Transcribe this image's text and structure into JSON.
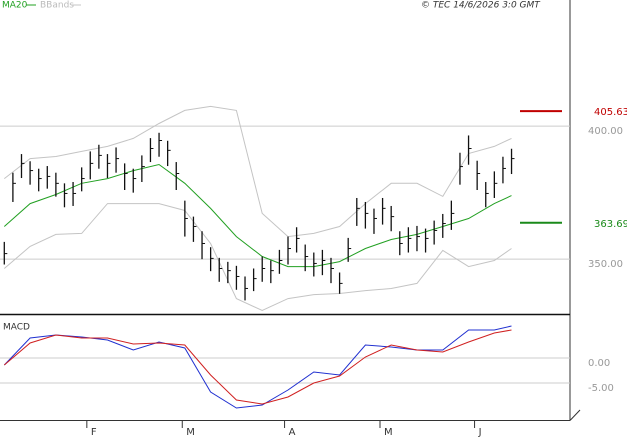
{
  "chart_data": [
    {
      "type": "ohlc",
      "source": "© TEC 14/6/2026 3:0 GMT",
      "xlim": [
        -0.5,
        65.8
      ],
      "ylim": [
        329.4,
        447.4
      ],
      "yticks": [
        {
          "value": 400,
          "label": "400.00"
        },
        {
          "value": 350,
          "label": "350.00"
        }
      ],
      "xticks": [
        {
          "value": 9.6,
          "label": "F"
        },
        {
          "value": 20.7,
          "label": "M"
        },
        {
          "value": 32.6,
          "label": "A"
        },
        {
          "value": 43.7,
          "label": "M"
        },
        {
          "value": 54.7,
          "label": "J"
        }
      ],
      "grid": true,
      "bar_color": "#111111",
      "high": [
        356.5,
        382.5,
        389.5,
        386.8,
        384.0,
        385.0,
        382.5,
        378.5,
        379.0,
        384.5,
        390.5,
        393.0,
        389.5,
        392.0,
        386.0,
        384.0,
        389.0,
        395.5,
        397.5,
        394.5,
        386.5,
        372.0,
        366.0,
        360.5,
        354.5,
        350.5,
        349.0,
        347.5,
        343.5,
        346.5,
        351.0,
        349.5,
        353.5,
        358.5,
        362.0,
        355.5,
        352.5,
        353.5,
        350.5,
        345.0,
        358.0,
        373.0,
        371.5,
        369.0,
        373.0,
        370.0,
        360.5,
        362.0,
        362.5,
        361.5,
        364.5,
        367.0,
        372.0,
        390.0,
        396.5,
        387.0,
        379.0,
        383.0,
        388.5,
        391.5
      ],
      "low": [
        348.0,
        371.5,
        380.5,
        378.0,
        375.5,
        376.5,
        373.5,
        369.5,
        370.0,
        375.5,
        380.0,
        384.0,
        380.5,
        382.5,
        376.0,
        375.0,
        379.0,
        386.5,
        388.5,
        385.0,
        376.0,
        358.5,
        356.5,
        350.0,
        345.5,
        341.5,
        341.0,
        338.5,
        334.5,
        338.0,
        341.5,
        341.0,
        344.5,
        348.0,
        352.5,
        345.5,
        343.5,
        344.0,
        341.0,
        337.0,
        349.0,
        362.5,
        361.5,
        359.5,
        363.0,
        360.5,
        351.5,
        352.5,
        353.0,
        352.5,
        355.5,
        358.0,
        361.0,
        378.0,
        385.5,
        376.0,
        369.5,
        373.0,
        378.5,
        382.0
      ],
      "close": [
        352.1,
        378.5,
        386.0,
        383.3,
        380.3,
        381.1,
        378.5,
        374.7,
        374.7,
        380.3,
        386.0,
        389.0,
        386.0,
        387.8,
        382.2,
        380.3,
        384.8,
        391.6,
        394.6,
        390.9,
        382.2,
        365.3,
        362.3,
        355.9,
        350.3,
        346.5,
        345.7,
        343.5,
        339.0,
        342.7,
        346.5,
        345.7,
        349.5,
        354.0,
        357.8,
        351.0,
        348.4,
        349.5,
        346.5,
        340.9,
        354.0,
        369.1,
        367.2,
        365.3,
        369.1,
        366.0,
        355.9,
        357.8,
        358.5,
        357.8,
        360.8,
        363.4,
        367.2,
        384.8,
        391.6,
        382.2,
        374.7,
        378.5,
        384.1,
        387.8
      ],
      "series": [
        {
          "name": "MA20",
          "color": "#22a022",
          "x": [
            0,
            3,
            6,
            9,
            12,
            15,
            18,
            21,
            24,
            27,
            30,
            33,
            36,
            39,
            42,
            45,
            48,
            51,
            54,
            57,
            59
          ],
          "values": [
            362.3,
            370.9,
            374.3,
            378.5,
            380.3,
            383.3,
            385.6,
            378.5,
            369.1,
            358.5,
            351.0,
            347.2,
            347.2,
            349.1,
            354.0,
            357.4,
            359.3,
            362.3,
            365.3,
            370.9,
            373.9
          ]
        },
        {
          "name": "BBands",
          "color": "#c4c4c4",
          "x": [
            0,
            3,
            6,
            9,
            12,
            15,
            18,
            21,
            24,
            27,
            30,
            33,
            36,
            39,
            42,
            45,
            48,
            51,
            54,
            57,
            59
          ],
          "upper": [
            380.3,
            387.8,
            388.6,
            390.5,
            392.4,
            395.4,
            401.0,
            405.9,
            407.4,
            405.9,
            367.2,
            358.5,
            359.7,
            362.3,
            370.9,
            378.5,
            378.5,
            373.6,
            389.7,
            392.4,
            395.4
          ],
          "lower": [
            346.5,
            354.8,
            359.3,
            359.7,
            370.9,
            370.9,
            370.9,
            368.3,
            355.9,
            335.2,
            330.7,
            335.2,
            336.7,
            337.1,
            338.2,
            339.0,
            340.9,
            353.3,
            347.2,
            349.5,
            354.0
          ]
        }
      ],
      "levels": [
        {
          "value": 405.63,
          "color": "#c00000"
        },
        {
          "value": 363.69,
          "color": "#1a8a1a"
        }
      ]
    },
    {
      "type": "line",
      "title": "MACD",
      "ylim": [
        -12.4,
        8.4
      ],
      "yticks": [
        {
          "value": 0,
          "label": "0.00"
        },
        {
          "value": -5,
          "label": "-5.00"
        }
      ],
      "grid": true,
      "series": [
        {
          "color": "#2030d0",
          "x": [
            0,
            3,
            6,
            9,
            12,
            15,
            18,
            21,
            24,
            27,
            30,
            33,
            36,
            39,
            42,
            45,
            48,
            51,
            54,
            57,
            59
          ],
          "values": [
            -1.4,
            4.0,
            4.6,
            4.2,
            3.6,
            1.6,
            3.2,
            2.0,
            -6.8,
            -10.0,
            -9.4,
            -6.4,
            -2.8,
            -3.4,
            2.6,
            2.2,
            1.6,
            1.6,
            5.6,
            5.6,
            6.4
          ]
        },
        {
          "color": "#d02020",
          "x": [
            0,
            3,
            6,
            9,
            12,
            15,
            18,
            21,
            24,
            27,
            30,
            33,
            36,
            39,
            42,
            45,
            48,
            51,
            54,
            57,
            59
          ],
          "values": [
            -1.4,
            3.0,
            4.6,
            4.0,
            4.0,
            2.8,
            3.0,
            2.6,
            -3.4,
            -8.4,
            -9.2,
            -7.8,
            -5.0,
            -3.6,
            0.2,
            2.6,
            1.6,
            1.2,
            3.2,
            5.0,
            5.6
          ]
        }
      ]
    }
  ]
}
